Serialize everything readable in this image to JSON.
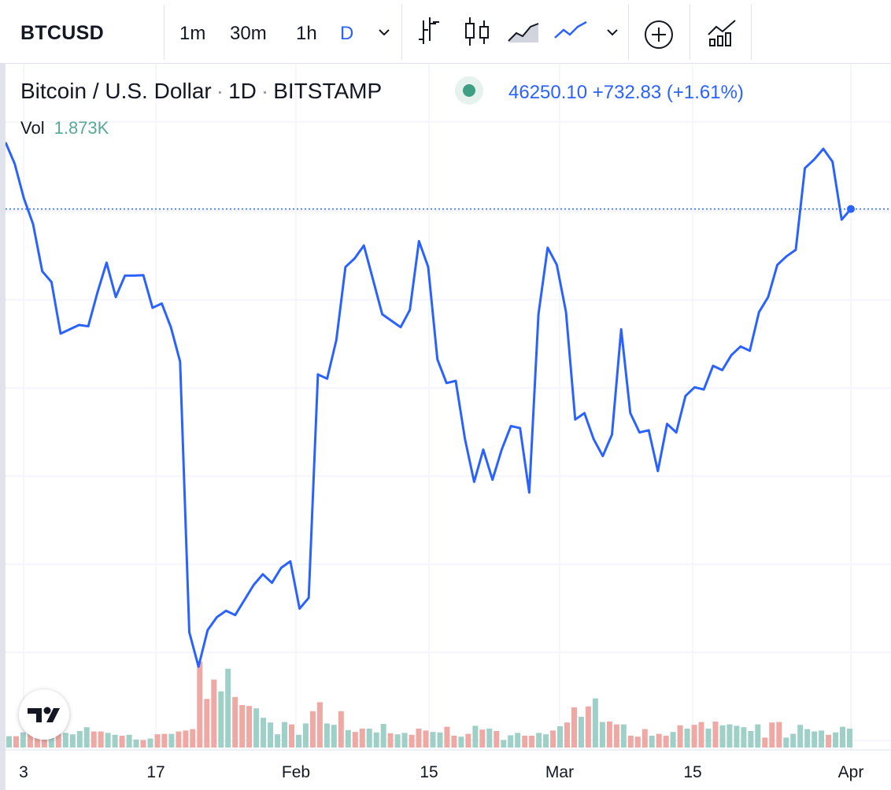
{
  "toolbar": {
    "symbol": "BTCUSD",
    "intervals": [
      {
        "label": "1m",
        "active": false
      },
      {
        "label": "30m",
        "active": false
      },
      {
        "label": "1h",
        "active": false
      },
      {
        "label": "D",
        "active": true
      }
    ],
    "icons": [
      "chevron-down-icon",
      "bar-chart-icon",
      "candlestick-icon",
      "area-chart-icon",
      "line-chart-icon",
      "chevron-down-icon",
      "add-indicator-icon",
      "compare-icon"
    ]
  },
  "legend": {
    "name": "Bitcoin / U.S. Dollar",
    "sep": "·",
    "interval": "1D",
    "exchange": "BITSTAMP",
    "status": "market-open",
    "last": "46250.10",
    "change": "+732.83",
    "change_pct": "(+1.61%)",
    "vol_label": "Vol",
    "vol_value": "1.873K"
  },
  "colors": {
    "line": "#2962ff",
    "up_volume": "#9fd0c8",
    "down_volume": "#eea9a4",
    "grid": "#f0f3fa",
    "status": "#3f9f83"
  },
  "chart_data": {
    "type": "line",
    "x_ticks": [
      "3",
      "17",
      "Feb",
      "15",
      "Mar",
      "15",
      "Apr"
    ],
    "series": [
      {
        "values": [
          47800,
          47300,
          46500,
          45900,
          44800,
          44550,
          43350,
          43450,
          43550,
          43520,
          44300,
          45000,
          44200,
          44700,
          44700,
          44710,
          43950,
          44050,
          43500,
          42700,
          36400,
          35600,
          36450,
          36750,
          36900,
          36800,
          37150,
          37500,
          37750,
          37550,
          37900,
          38050,
          36950,
          37200,
          42400,
          42300,
          43200,
          44900,
          45100,
          45400,
          44600,
          43800,
          43650,
          43500,
          43900,
          45500,
          44900,
          42750,
          42200,
          42250,
          40900,
          39900,
          40650,
          39950,
          40650,
          41200,
          41150,
          39650,
          43800,
          45350,
          44950,
          43850,
          41350,
          41500,
          40900,
          40500,
          41000,
          43450,
          41500,
          41050,
          41100,
          40150,
          41250,
          41050,
          41900,
          42100,
          42050,
          42600,
          42500,
          42850,
          43050,
          42950,
          43850,
          44200,
          44950,
          45150,
          45300,
          47200,
          47400,
          47650,
          47350,
          46000,
          46250
        ],
        "ylim": [
          35000,
          48000
        ]
      }
    ],
    "volume": {
      "values": [
        0.24,
        0.24,
        0.32,
        0.86,
        0.68,
        0.76,
        0.4,
        0.29,
        0.31,
        0.28,
        0.35,
        0.43,
        0.34,
        0.34,
        0.31,
        0.27,
        0.25,
        0.27,
        0.17,
        0.16,
        0.19,
        0.28,
        0.29,
        0.29,
        0.34,
        0.36,
        0.39,
        1.82,
        1.03,
        1.44,
        1.19,
        1.67,
        1.07,
        0.9,
        0.88,
        0.83,
        0.63,
        0.53,
        0.28,
        0.54,
        0.49,
        0.27,
        0.51,
        0.77,
        0.96,
        0.51,
        0.48,
        0.77,
        0.37,
        0.33,
        0.4,
        0.4,
        0.32,
        0.5,
        0.3,
        0.28,
        0.31,
        0.27,
        0.4,
        0.36,
        0.33,
        0.32,
        0.44,
        0.25,
        0.23,
        0.29,
        0.46,
        0.38,
        0.4,
        0.35,
        0.16,
        0.26,
        0.31,
        0.25,
        0.25,
        0.31,
        0.28,
        0.36,
        0.45,
        0.53,
        0.85,
        0.65,
        0.87,
        1.04,
        0.54,
        0.55,
        0.49,
        0.49,
        0.25,
        0.23,
        0.39,
        0.25,
        0.29,
        0.25,
        0.33,
        0.47,
        0.4,
        0.48,
        0.54,
        0.4,
        0.55,
        0.47,
        0.49,
        0.46,
        0.43,
        0.35,
        0.49,
        0.21,
        0.53,
        0.54,
        0.21,
        0.29,
        0.48,
        0.39,
        0.34,
        0.36,
        0.27,
        0.32,
        0.44,
        0.4
      ],
      "up": [
        true,
        false,
        true,
        false,
        false,
        false,
        true,
        false,
        true,
        true,
        true,
        true,
        false,
        false,
        true,
        true,
        false,
        true,
        true,
        false,
        true,
        false,
        false,
        true,
        false,
        false,
        false,
        false,
        false,
        false,
        true,
        true,
        false,
        false,
        false,
        true,
        true,
        true,
        true,
        true,
        false,
        true,
        true,
        false,
        false,
        true,
        true,
        false,
        true,
        false,
        false,
        true,
        true,
        true,
        false,
        true,
        true,
        false,
        false,
        false,
        true,
        true,
        false,
        false,
        true,
        false,
        true,
        false,
        true,
        false,
        true,
        true,
        true,
        false,
        false,
        true,
        true,
        false,
        true,
        false,
        false,
        true,
        false,
        true,
        true,
        false,
        false,
        true,
        false,
        false,
        false,
        true,
        false,
        false,
        true,
        false,
        true,
        false,
        false,
        true,
        false,
        true,
        true,
        true,
        true,
        true,
        true,
        false,
        false,
        false,
        true,
        true,
        true,
        true,
        true,
        true,
        false,
        true,
        true,
        true
      ],
      "last": 1.873
    },
    "last_value": 46250.1,
    "grid": true
  }
}
